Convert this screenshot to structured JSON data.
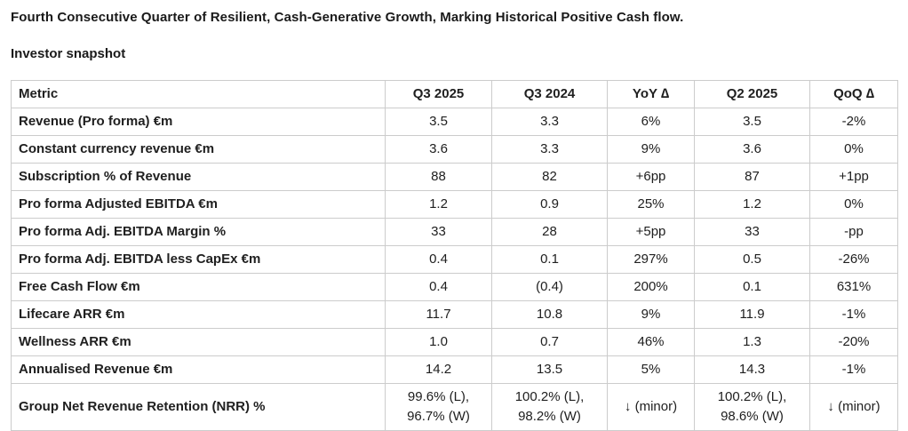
{
  "page": {
    "title": "Fourth Consecutive Quarter of Resilient, Cash-Generative Growth, Marking Historical Positive Cash flow.",
    "subtitle": "Investor snapshot"
  },
  "colors": {
    "border": "#cccccc",
    "text": "#202020",
    "background": "#ffffff"
  },
  "table": {
    "columns": [
      "Metric",
      "Q3 2025",
      "Q3 2024",
      "YoY ∆",
      "Q2 2025",
      "QoQ ∆"
    ],
    "rows": [
      {
        "metric": "Revenue (Pro forma) €m",
        "q3_2025": "3.5",
        "q3_2024": "3.3",
        "yoy": "6%",
        "q2_2025": "3.5",
        "qoq": "-2%"
      },
      {
        "metric": "Constant currency revenue €m",
        "q3_2025": "3.6",
        "q3_2024": "3.3",
        "yoy": "9%",
        "q2_2025": "3.6",
        "qoq": "0%"
      },
      {
        "metric": "Subscription % of Revenue",
        "q3_2025": "88",
        "q3_2024": "82",
        "yoy": "+6pp",
        "q2_2025": "87",
        "qoq": "+1pp"
      },
      {
        "metric": "Pro forma Adjusted EBITDA €m",
        "q3_2025": "1.2",
        "q3_2024": "0.9",
        "yoy": "25%",
        "q2_2025": "1.2",
        "qoq": "0%"
      },
      {
        "metric": "Pro forma Adj. EBITDA Margin %",
        "q3_2025": "33",
        "q3_2024": "28",
        "yoy": "+5pp",
        "q2_2025": "33",
        "qoq": "-pp"
      },
      {
        "metric": "Pro forma Adj. EBITDA less CapEx €m",
        "q3_2025": "0.4",
        "q3_2024": "0.1",
        "yoy": "297%",
        "q2_2025": "0.5",
        "qoq": "-26%"
      },
      {
        "metric": "Free Cash Flow €m",
        "q3_2025": "0.4",
        "q3_2024": "(0.4)",
        "yoy": "200%",
        "q2_2025": "0.1",
        "qoq": "631%"
      },
      {
        "metric": "Lifecare ARR €m",
        "q3_2025": "11.7",
        "q3_2024": "10.8",
        "yoy": "9%",
        "q2_2025": "11.9",
        "qoq": "-1%"
      },
      {
        "metric": "Wellness ARR €m",
        "q3_2025": "1.0",
        "q3_2024": "0.7",
        "yoy": "46%",
        "q2_2025": "1.3",
        "qoq": "-20%"
      },
      {
        "metric": "Annualised Revenue €m",
        "q3_2025": "14.2",
        "q3_2024": "13.5",
        "yoy": "5%",
        "q2_2025": "14.3",
        "qoq": "-1%"
      },
      {
        "metric": "Group Net Revenue Retention (NRR) %",
        "q3_2025": "99.6% (L), 96.7% (W)",
        "q3_2024": "100.2% (L), 98.2% (W)",
        "yoy": "↓ (minor)",
        "q2_2025": "100.2% (L), 98.6% (W)",
        "qoq": "↓ (minor)"
      }
    ]
  }
}
